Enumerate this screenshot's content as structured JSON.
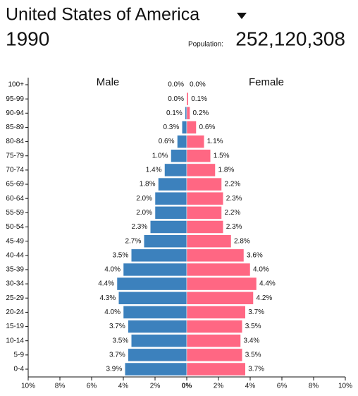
{
  "header": {
    "title": "United States of America",
    "year": "1990",
    "population_label": "Population:",
    "population": "252,120,308"
  },
  "chart_data": {
    "type": "pyramid",
    "categories": [
      "0-4",
      "5-9",
      "10-14",
      "15-19",
      "20-24",
      "25-29",
      "30-34",
      "35-39",
      "40-44",
      "45-49",
      "50-54",
      "55-59",
      "60-64",
      "65-69",
      "70-74",
      "75-79",
      "80-84",
      "85-89",
      "90-94",
      "95-99",
      "100+"
    ],
    "series": [
      {
        "name": "Male",
        "color": "#3c81bd",
        "side": "left",
        "values": [
          3.9,
          3.7,
          3.5,
          3.7,
          4.0,
          4.3,
          4.4,
          4.0,
          3.5,
          2.7,
          2.3,
          2.0,
          2.0,
          1.8,
          1.4,
          1.0,
          0.6,
          0.3,
          0.1,
          0.0,
          0.0
        ],
        "value_labels": [
          "3.9%",
          "3.7%",
          "3.5%",
          "3.7%",
          "4.0%",
          "4.3%",
          "4.4%",
          "4.0%",
          "3.5%",
          "2.7%",
          "2.3%",
          "2.0%",
          "2.0%",
          "1.8%",
          "1.4%",
          "1.0%",
          "0.6%",
          "0.3%",
          "0.1%",
          "0.0%",
          "0.0%"
        ]
      },
      {
        "name": "Female",
        "color": "#ff6783",
        "side": "right",
        "values": [
          3.7,
          3.5,
          3.4,
          3.5,
          3.7,
          4.2,
          4.4,
          4.0,
          3.6,
          2.8,
          2.3,
          2.2,
          2.3,
          2.2,
          1.8,
          1.5,
          1.1,
          0.6,
          0.2,
          0.1,
          0.0
        ],
        "value_labels": [
          "3.7%",
          "3.5%",
          "3.4%",
          "3.5%",
          "3.7%",
          "4.2%",
          "4.4%",
          "4.0%",
          "3.6%",
          "2.8%",
          "2.3%",
          "2.2%",
          "2.3%",
          "2.2%",
          "1.8%",
          "1.5%",
          "1.1%",
          "0.6%",
          "0.2%",
          "0.1%",
          "0.0%"
        ]
      }
    ],
    "xlim": [
      -10,
      10
    ],
    "xticks": [
      {
        "value": -10,
        "label": "10%"
      },
      {
        "value": -8,
        "label": "8%"
      },
      {
        "value": -6,
        "label": "6%"
      },
      {
        "value": -4,
        "label": "4%"
      },
      {
        "value": -2,
        "label": "2%"
      },
      {
        "value": 0,
        "label": "0%"
      },
      {
        "value": 2,
        "label": "2%"
      },
      {
        "value": 4,
        "label": "4%"
      },
      {
        "value": 6,
        "label": "6%"
      },
      {
        "value": 8,
        "label": "8%"
      },
      {
        "value": 10,
        "label": "10%"
      }
    ]
  }
}
